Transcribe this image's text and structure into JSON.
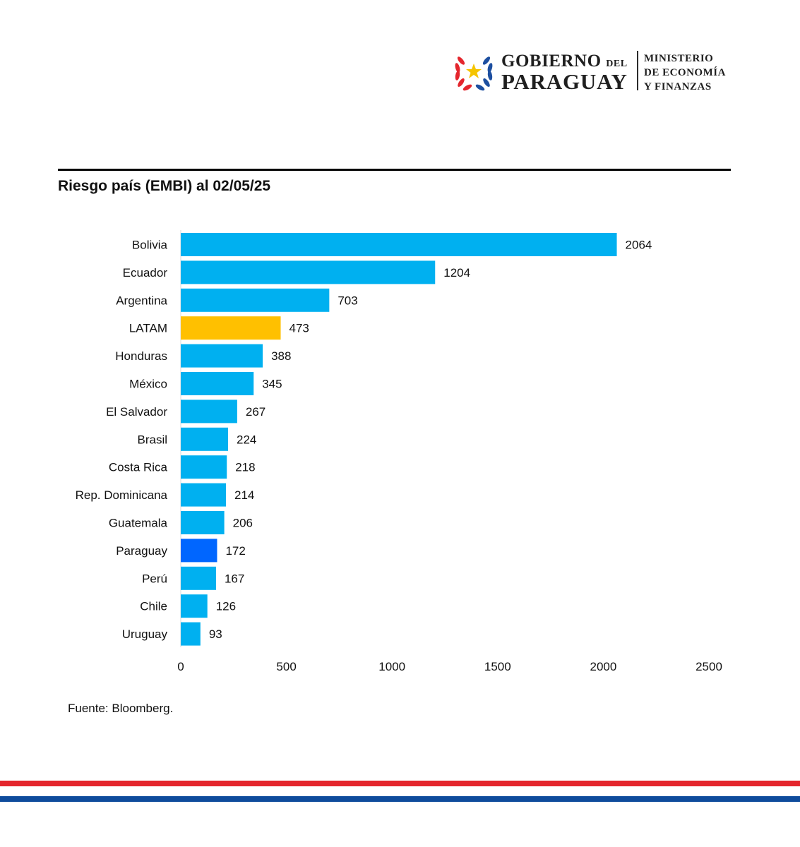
{
  "header": {
    "gov_line1": "GOBIERNO",
    "gov_line1_small": "DEL",
    "gov_line2": "PARAGUAY",
    "ministry_line1": "MINISTERIO",
    "ministry_line2": "DE ECONOMÍA",
    "ministry_line3": "Y FINANZAS",
    "seal_icon": "paraguay-seal-icon"
  },
  "footer": {
    "source": "Fuente: Bloomberg.",
    "stripe_colors": [
      "#e4262d",
      "#0e4c9c"
    ]
  },
  "chart_data": {
    "type": "bar",
    "orientation": "horizontal",
    "title": "Riesgo país (EMBI) al 02/05/25",
    "categories": [
      "Bolivia",
      "Ecuador",
      "Argentina",
      "LATAM",
      "Honduras",
      "México",
      "El Salvador",
      "Brasil",
      "Costa Rica",
      "Rep. Dominicana",
      "Guatemala",
      "Paraguay",
      "Perú",
      "Chile",
      "Uruguay"
    ],
    "values": [
      2064,
      1204,
      703,
      473,
      388,
      345,
      267,
      224,
      218,
      214,
      206,
      172,
      167,
      126,
      93
    ],
    "colors": [
      "#00b0f0",
      "#00b0f0",
      "#00b0f0",
      "#ffc000",
      "#00b0f0",
      "#00b0f0",
      "#00b0f0",
      "#00b0f0",
      "#00b0f0",
      "#00b0f0",
      "#00b0f0",
      "#0066ff",
      "#00b0f0",
      "#00b0f0",
      "#00b0f0"
    ],
    "xlim": [
      0,
      2500
    ],
    "xticks": [
      0,
      500,
      1000,
      1500,
      2000,
      2500
    ],
    "xlabel": "",
    "ylabel": "",
    "grid": false,
    "data_labels": true,
    "legend": "none"
  }
}
